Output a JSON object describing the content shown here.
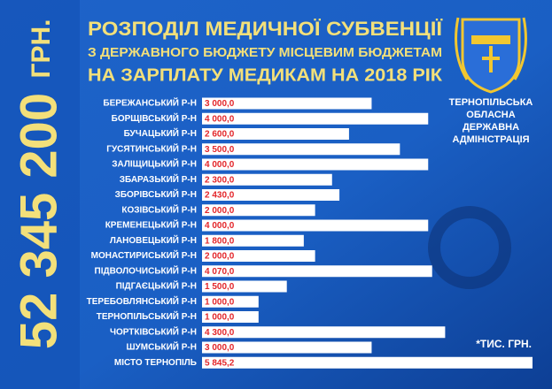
{
  "chart_data": {
    "type": "bar",
    "orientation": "horizontal",
    "title": [
      "РОЗПОДІЛ МЕДИЧНОЇ СУБВЕНЦІЇ",
      "З ДЕРЖАВНОГО БЮДЖЕТУ МІСЦЕВИМ БЮДЖЕТАМ",
      "НА ЗАРПЛАТУ МЕДИКАМ НА 2018 РІК"
    ],
    "total": "52 345 200",
    "total_unit": "ГРН.",
    "organization": [
      "ТЕРНОПІЛЬСЬКА",
      "ОБЛАСНА",
      "ДЕРЖАВНА",
      "АДМІНІСТРАЦІЯ"
    ],
    "unit_note": "*ТИС. ГРН.",
    "color": "#ffffff",
    "label_color": "#e3262a",
    "categories": [
      "БЕРЕЖАНСЬКИЙ Р-Н",
      "БОРЩІВСЬКИЙ Р-Н",
      "БУЧАЦЬКИЙ Р-Н",
      "ГУСЯТИНСЬКИЙ Р-Н",
      "ЗАЛІЩИЦЬКИЙ Р-Н",
      "ЗБАРАЗЬКИЙ Р-Н",
      "ЗБОРІВСЬКИЙ Р-Н",
      "КОЗІВСЬКИЙ Р-Н",
      "КРЕМЕНЕЦЬКИЙ Р-Н",
      "ЛАНОВЕЦЬКИЙ Р-Н",
      "МОНАСТИРИСЬКИЙ Р-Н",
      "ПІДВОЛОЧИСЬКИЙ Р-Н",
      "ПІДГАЄЦЬКИЙ Р-Н",
      "ТЕРЕБОВЛЯНСЬКИЙ Р-Н",
      "ТЕРНОПІЛЬСЬКИЙ Р-Н",
      "ЧОРТКІВСЬКИЙ Р-Н",
      "ШУМСЬКИЙ Р-Н",
      "МІСТО ТЕРНОПІЛЬ"
    ],
    "values": [
      3000,
      4000,
      2600,
      3500,
      4000,
      2300,
      2430,
      2000,
      4000,
      1800,
      2000,
      4070,
      1500,
      1000,
      1000,
      4300,
      3000,
      5845.2
    ],
    "value_labels": [
      "3 000,0",
      "4 000,0",
      "2 600,0",
      "3 500,0",
      "4 000,0",
      "2 300,0",
      "2 430,0",
      "2 000,0",
      "4 000,0",
      "1 800,0",
      "2 000,0",
      "4 070,0",
      "1 500,0",
      "1 000,0",
      "1 000,0",
      "4 300,0",
      "3 000,0",
      "5 845,2"
    ]
  }
}
